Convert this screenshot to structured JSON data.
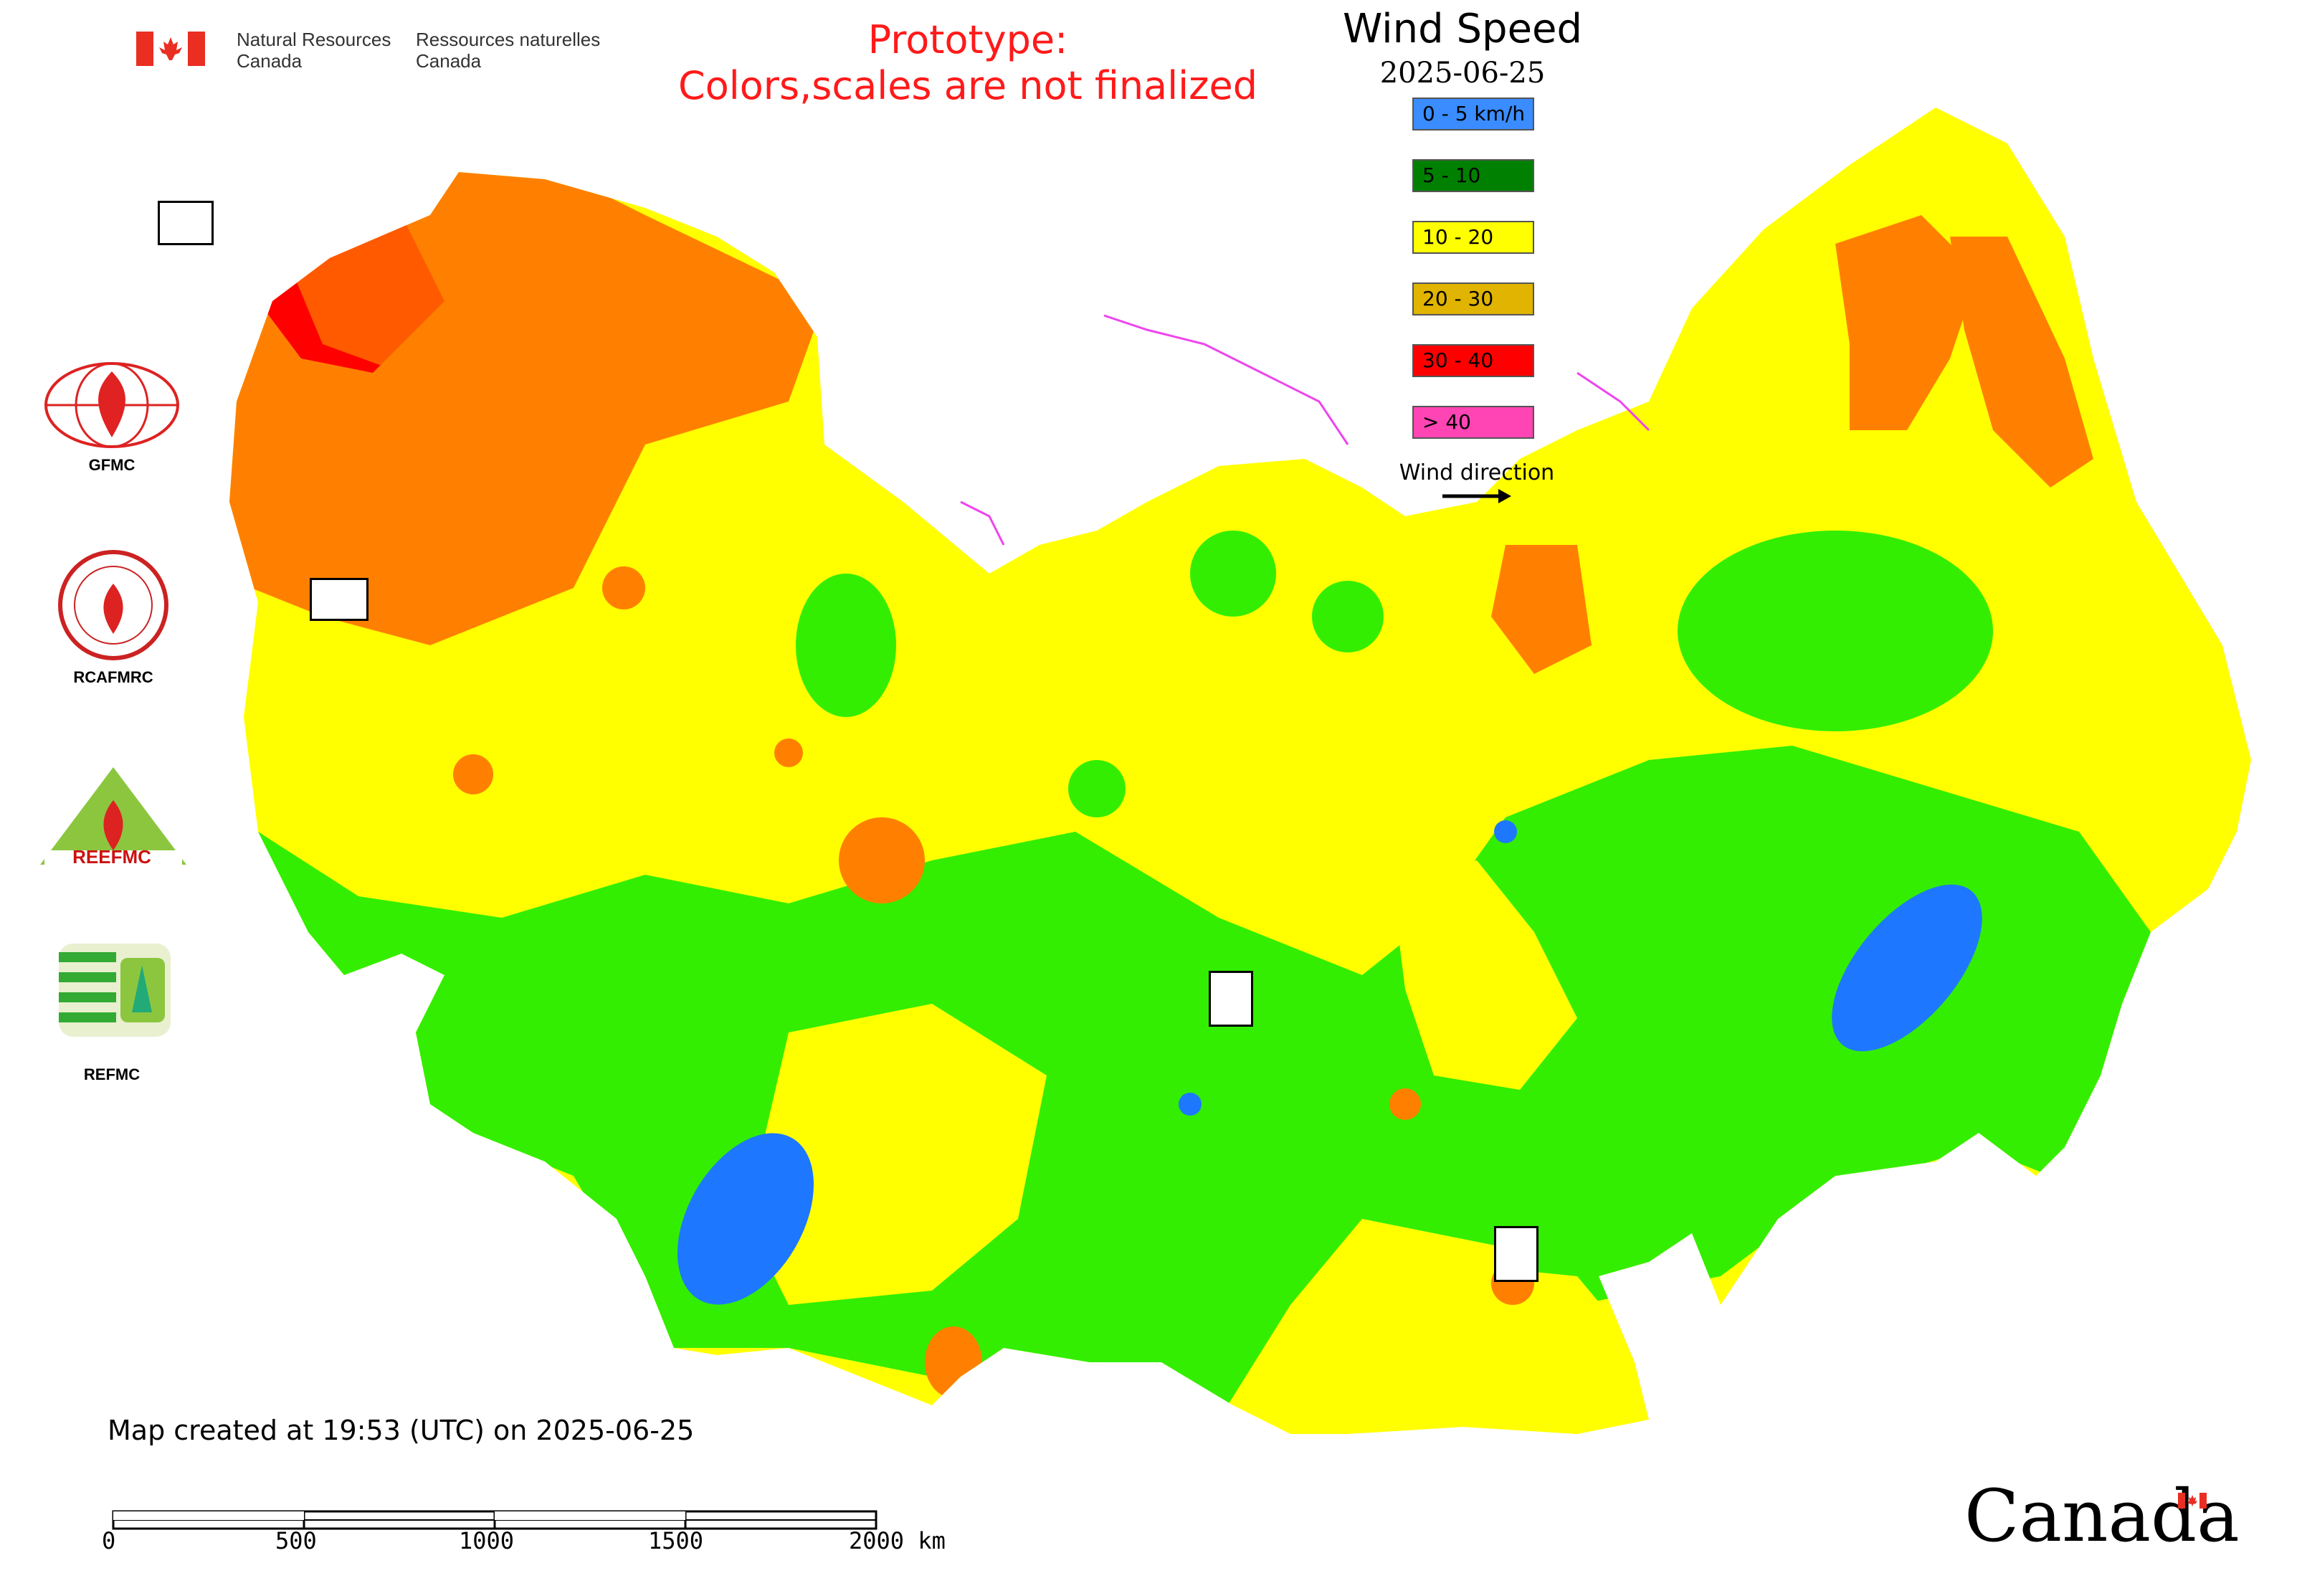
{
  "header": {
    "nrcan_en": "Natural Resources\nCanada",
    "nrcan_en_1": "Natural Resources",
    "nrcan_en_2": "Canada",
    "nrcan_fr_1": "Ressources naturelles",
    "nrcan_fr_2": "Canada",
    "prototype_1": "Prototype:",
    "prototype_2": "Colors,scales are not finalized",
    "title": "Wind Speed",
    "date": "2025-06-25"
  },
  "legend": {
    "items": [
      {
        "label": "0 - 5 km/h",
        "color": "#3a8cff"
      },
      {
        "label": "5 - 10",
        "color": "#008000"
      },
      {
        "label": "10 - 20",
        "color": "#ffff00"
      },
      {
        "label": "20 - 30",
        "color": "#e0b400"
      },
      {
        "label": "30 - 40",
        "color": "#ff0000"
      },
      {
        "label": "> 40",
        "color": "#ff44b4"
      }
    ],
    "wind_direction": "Wind direction"
  },
  "agencies": [
    {
      "label": "GFMC"
    },
    {
      "label": "RCAFMRC"
    },
    {
      "label": "REEFMC"
    },
    {
      "label": "REFMC"
    }
  ],
  "colors": {
    "yellow": "#ffff00",
    "green": "#33ee00",
    "orange": "#ff8000",
    "red": "#ff0000",
    "blue": "#1e78ff",
    "magenta": "#ee44ee"
  },
  "footer": {
    "created": "Map created at 19:53 (UTC) on 2025-06-25",
    "scale_ticks": [
      "0",
      "500",
      "1000",
      "1500",
      "2000 km"
    ],
    "wordmark": "Canada"
  }
}
